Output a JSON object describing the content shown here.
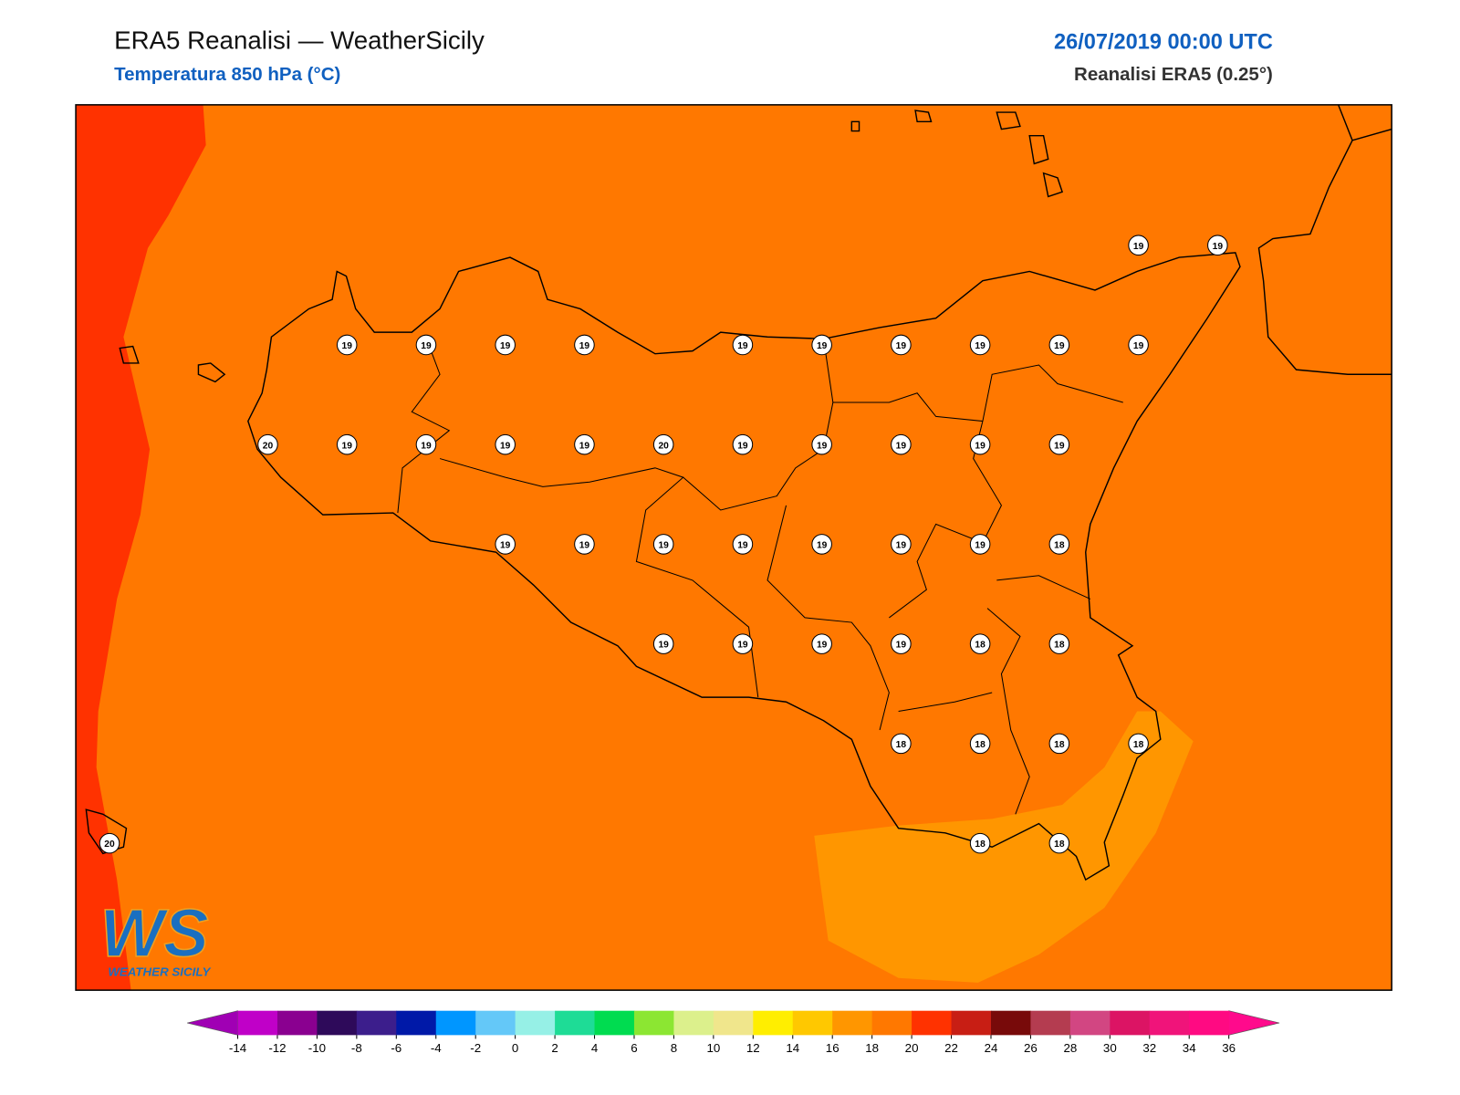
{
  "header": {
    "title": "ERA5 Reanalisi — WeatherSicily",
    "subtitle": "Temperatura 850 hPa (°C)",
    "date": "26/07/2019 00:00 UTC",
    "source": "Reanalisi ERA5 (0.25°)"
  },
  "map": {
    "grid": [
      [
        null,
        null,
        null,
        null,
        null,
        null,
        null,
        null,
        null,
        null,
        null,
        null,
        null,
        19,
        19
      ],
      [
        null,
        null,
        null,
        19,
        19,
        19,
        19,
        null,
        19,
        19,
        19,
        19,
        19,
        19,
        null
      ],
      [
        null,
        null,
        20,
        19,
        19,
        19,
        19,
        20,
        19,
        19,
        19,
        19,
        19,
        null,
        null
      ],
      [
        null,
        null,
        null,
        null,
        null,
        19,
        19,
        19,
        19,
        19,
        19,
        19,
        18,
        null,
        null
      ],
      [
        null,
        null,
        null,
        null,
        null,
        null,
        null,
        19,
        19,
        19,
        19,
        18,
        18,
        null,
        null
      ],
      [
        null,
        null,
        null,
        null,
        null,
        null,
        null,
        null,
        null,
        null,
        18,
        18,
        18,
        18,
        null
      ],
      [
        20,
        null,
        null,
        null,
        null,
        null,
        null,
        null,
        null,
        null,
        null,
        18,
        18,
        null,
        null
      ]
    ],
    "logo": {
      "mark": "WS",
      "name": "WEATHER SICILY"
    }
  },
  "colorbar": {
    "ticks": [
      -14,
      -12,
      -10,
      -8,
      -6,
      -4,
      -2,
      0,
      2,
      4,
      6,
      8,
      10,
      12,
      14,
      16,
      18,
      20,
      22,
      24,
      26,
      28,
      30,
      32,
      34,
      36
    ],
    "colors": [
      "#c000c8",
      "#8a0090",
      "#2e0a5a",
      "#3c1e8c",
      "#0019a8",
      "#0096ff",
      "#64c8f8",
      "#96f0e6",
      "#1edc96",
      "#00dc50",
      "#8ce632",
      "#dcf08c",
      "#f0e68c",
      "#ffee00",
      "#ffc800",
      "#ff9600",
      "#ff7800",
      "#ff3200",
      "#c81e14",
      "#780a0a",
      "#b43c50",
      "#d24682",
      "#dc1464",
      "#f0147a",
      "#ff0a82"
    ],
    "under_color": "#a000b4",
    "over_color": "#ff0a8c"
  }
}
